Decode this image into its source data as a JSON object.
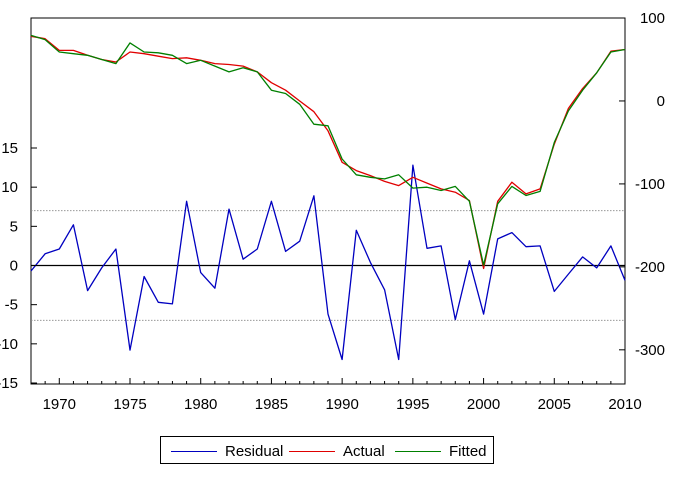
{
  "chart_data": {
    "type": "line",
    "x": [
      1968,
      1969,
      1970,
      1971,
      1972,
      1973,
      1974,
      1975,
      1976,
      1977,
      1978,
      1979,
      1980,
      1981,
      1982,
      1983,
      1984,
      1985,
      1986,
      1987,
      1988,
      1989,
      1990,
      1991,
      1992,
      1993,
      1994,
      1995,
      1996,
      1997,
      1998,
      1999,
      2000,
      2001,
      2002,
      2003,
      2004,
      2005,
      2006,
      2007,
      2008,
      2009,
      2010
    ],
    "xlim": [
      1968,
      2010
    ],
    "x_ticks": [
      1970,
      1975,
      1980,
      1985,
      1990,
      1995,
      2000,
      2005,
      2010
    ],
    "left_axis": {
      "ylim": [
        -15,
        15
      ],
      "ticks": [
        15,
        10,
        5,
        0,
        -5,
        -10,
        -15
      ],
      "tick_labels": [
        "15",
        "10",
        "5",
        "0",
        "-5",
        "-10",
        "-15"
      ],
      "reference_lines": [
        {
          "value": 7,
          "style": "dotted"
        },
        {
          "value": 0,
          "style": "solid"
        },
        {
          "value": -7,
          "style": "dotted"
        }
      ]
    },
    "right_axis": {
      "ylim": [
        -340,
        100
      ],
      "ticks": [
        100,
        0,
        -100,
        -200,
        -300
      ],
      "tick_labels": [
        "100",
        "0",
        "-100",
        "-200",
        "-300"
      ]
    },
    "series": [
      {
        "name": "Residual",
        "color": "#0000c0",
        "axis": "left",
        "values": [
          -0.7,
          1.5,
          2.1,
          5.2,
          -3.2,
          -0.3,
          2.1,
          -10.8,
          -1.4,
          -4.7,
          -4.9,
          8.2,
          -0.9,
          -2.9,
          7.2,
          0.8,
          2.1,
          8.2,
          1.8,
          3.1,
          8.9,
          -6.2,
          -12.0,
          4.5,
          0.4,
          -3.1,
          -12.0,
          12.8,
          2.2,
          2.5,
          -6.9,
          0.6,
          -6.2,
          3.4,
          4.2,
          2.4,
          2.5,
          -3.3,
          -1.1,
          1.1,
          -0.3,
          2.5,
          -1.9
        ]
      },
      {
        "name": "Actual",
        "color": "#e00000",
        "axis": "right",
        "values": [
          78,
          75,
          61,
          61,
          55,
          50,
          47,
          59,
          57,
          54,
          51,
          52,
          49,
          45,
          44,
          42,
          35,
          22,
          13,
          0,
          -13,
          -36,
          -74,
          -84,
          -90,
          -97,
          -102,
          -92,
          -99,
          -106,
          -110,
          -120,
          -202,
          -121,
          -98,
          -112,
          -106,
          -52,
          -9,
          15,
          34,
          60,
          62
        ]
      },
      {
        "name": "Fitted",
        "color": "#008000",
        "axis": "right",
        "values": [
          79,
          74,
          59,
          57,
          55,
          50,
          45,
          70,
          59,
          58,
          55,
          45,
          49,
          42,
          35,
          40,
          35,
          13,
          9,
          -4,
          -28,
          -30,
          -70,
          -89,
          -92,
          -94,
          -89,
          -105,
          -104,
          -108,
          -103,
          -121,
          -198,
          -124,
          -103,
          -114,
          -109,
          -50,
          -12,
          13,
          34,
          59,
          62
        ]
      }
    ],
    "legend": {
      "placement": "bottom-center",
      "items": [
        "Residual",
        "Actual",
        "Fitted"
      ]
    },
    "grid": false
  }
}
